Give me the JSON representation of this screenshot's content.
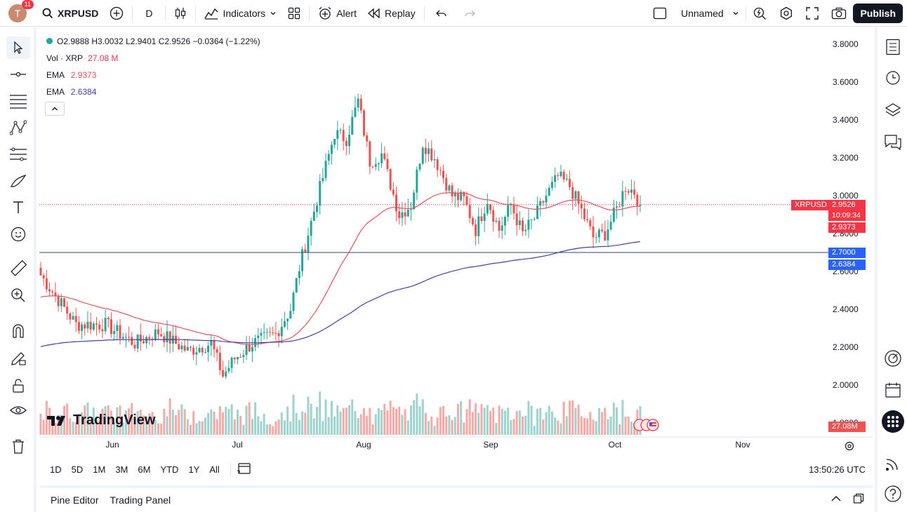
{
  "header": {
    "avatar_letter": "T",
    "notifications": "11",
    "symbol": "XRPUSD",
    "interval": "D",
    "indicators_label": "Indicators",
    "alert_label": "Alert",
    "replay_label": "Replay",
    "layout_name": "Unnamed",
    "publish_label": "Publish"
  },
  "legend": {
    "ohlc": "O2.9888 H3.0032 L2.9401 C2.9526 −0.0364 (−1.22%)",
    "vol_label": "Vol · XRP",
    "vol_value": "27.08 M",
    "ema_fast_label": "EMA",
    "ema_fast_value": "2.9373",
    "ema_slow_label": "EMA",
    "ema_slow_value": "2.6384"
  },
  "price_labels": {
    "symbol": "XRPUSD",
    "last": "2.9526",
    "countdown": "10:09:34",
    "ema_fast": "2.9373",
    "hline": "2.7000",
    "ema_slow": "2.6384",
    "volume": "27.08M"
  },
  "chart_data": {
    "type": "candlestick",
    "y_ticks": [
      "3.8000",
      "3.6000",
      "3.4000",
      "3.2000",
      "3.0000",
      "2.8000",
      "2.6000",
      "2.4000",
      "2.2000",
      "2.0000",
      "1.8000"
    ],
    "x_ticks": [
      "Jun",
      "Jul",
      "Aug",
      "Sep",
      "Oct",
      "Nov"
    ],
    "ylim": [
      1.8,
      3.8
    ],
    "horizontal_line": 2.7,
    "last_price": 2.9526
  },
  "bottom": {
    "ranges": [
      "1D",
      "5D",
      "1M",
      "3M",
      "6M",
      "YTD",
      "1Y",
      "All"
    ],
    "clock": "13:50:26 UTC",
    "pine_editor": "Pine Editor",
    "trading_panel": "Trading Panel"
  },
  "branding": {
    "logo_text": "TradingView"
  },
  "colors": {
    "up": "#26a69a",
    "down": "#ef5350",
    "ema_fast": "#e8505b",
    "ema_slow": "#3f3fa6",
    "hline": "#2a4a7a",
    "accent": "#2962ff"
  }
}
